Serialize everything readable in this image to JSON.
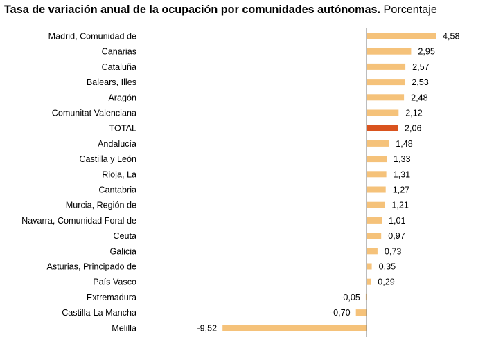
{
  "title": "Tasa de variación anual de la ocupación por comunidades autónomas.",
  "subtitle": "Porcentaje",
  "colors": {
    "bar": "#f5c27a",
    "highlight": "#d9531e",
    "axis": "#7a7a7a"
  },
  "chart_data": {
    "type": "bar",
    "orientation": "horizontal",
    "title": "Tasa de variación anual de la ocupación por comunidades autónomas.",
    "subtitle": "Porcentaje",
    "xlim": [
      -10,
      5
    ],
    "highlight": "TOTAL",
    "categories": [
      "Madrid, Comunidad de",
      "Canarias",
      "Cataluña",
      "Balears, Illes",
      "Aragón",
      "Comunitat Valenciana",
      "TOTAL",
      "Andalucía",
      "Castilla y León",
      "Rioja, La",
      "Cantabria",
      "Murcia, Región de",
      "Navarra, Comunidad Foral de",
      "Ceuta",
      "Galicia",
      "Asturias, Principado de",
      "País Vasco",
      "Extremadura",
      "Castilla-La Mancha",
      "Melilla"
    ],
    "values": [
      4.58,
      2.95,
      2.57,
      2.53,
      2.48,
      2.12,
      2.06,
      1.48,
      1.33,
      1.31,
      1.27,
      1.21,
      1.01,
      0.97,
      0.73,
      0.35,
      0.29,
      -0.05,
      -0.7,
      -9.52
    ],
    "value_labels": [
      "4,58",
      "2,95",
      "2,57",
      "2,53",
      "2,48",
      "2,12",
      "2,06",
      "1,48",
      "1,33",
      "1,31",
      "1,27",
      "1,21",
      "1,01",
      "0,97",
      "0,73",
      "0,35",
      "0,29",
      "-0,05",
      "-0,70",
      "-9,52"
    ]
  }
}
